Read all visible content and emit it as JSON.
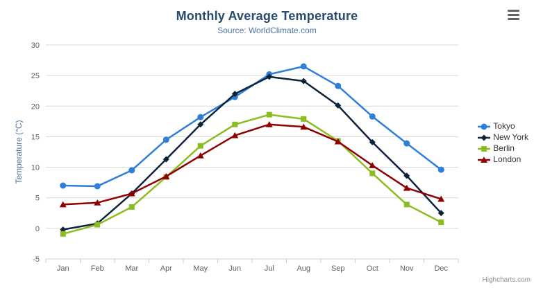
{
  "chart": {
    "credit": "Highcharts.com",
    "context_menu_icon": "hamburger-icon"
  },
  "chart_data": {
    "type": "line",
    "title": "Monthly Average Temperature",
    "subtitle": "Source: WorldClimate.com",
    "xlabel": "",
    "ylabel": "Temperature (°C)",
    "ylim": [
      -5,
      30
    ],
    "tick_interval": 5,
    "grid": true,
    "legend_position": "right",
    "categories": [
      "Jan",
      "Feb",
      "Mar",
      "Apr",
      "May",
      "Jun",
      "Jul",
      "Aug",
      "Sep",
      "Oct",
      "Nov",
      "Dec"
    ],
    "series": [
      {
        "name": "Tokyo",
        "color": "#2f7ed8",
        "marker": "circle",
        "values": [
          7.0,
          6.9,
          9.5,
          14.5,
          18.2,
          21.5,
          25.2,
          26.5,
          23.3,
          18.3,
          13.9,
          9.6
        ]
      },
      {
        "name": "New York",
        "color": "#0d233a",
        "marker": "diamond",
        "values": [
          -0.2,
          0.8,
          5.7,
          11.3,
          17.0,
          22.0,
          24.8,
          24.1,
          20.1,
          14.1,
          8.6,
          2.5
        ]
      },
      {
        "name": "Berlin",
        "color": "#8bbc21",
        "marker": "square",
        "values": [
          -0.9,
          0.6,
          3.5,
          8.4,
          13.5,
          17.0,
          18.6,
          17.9,
          14.3,
          9.0,
          3.9,
          1.0
        ]
      },
      {
        "name": "London",
        "color": "#910000",
        "marker": "triangle",
        "values": [
          3.9,
          4.2,
          5.7,
          8.5,
          11.9,
          15.2,
          17.0,
          16.6,
          14.2,
          10.3,
          6.6,
          4.8
        ]
      }
    ]
  },
  "colors": {
    "title": "#274b6d",
    "subtitle": "#4d759e",
    "axis_label": "#606060",
    "axis_title": "#4d759e",
    "grid_line": "#d8d8d8",
    "axis_line": "#c0d0e0",
    "legend_text": "#333333",
    "credit": "#909090",
    "menu_icon": "#666666",
    "background": "#ffffff"
  }
}
